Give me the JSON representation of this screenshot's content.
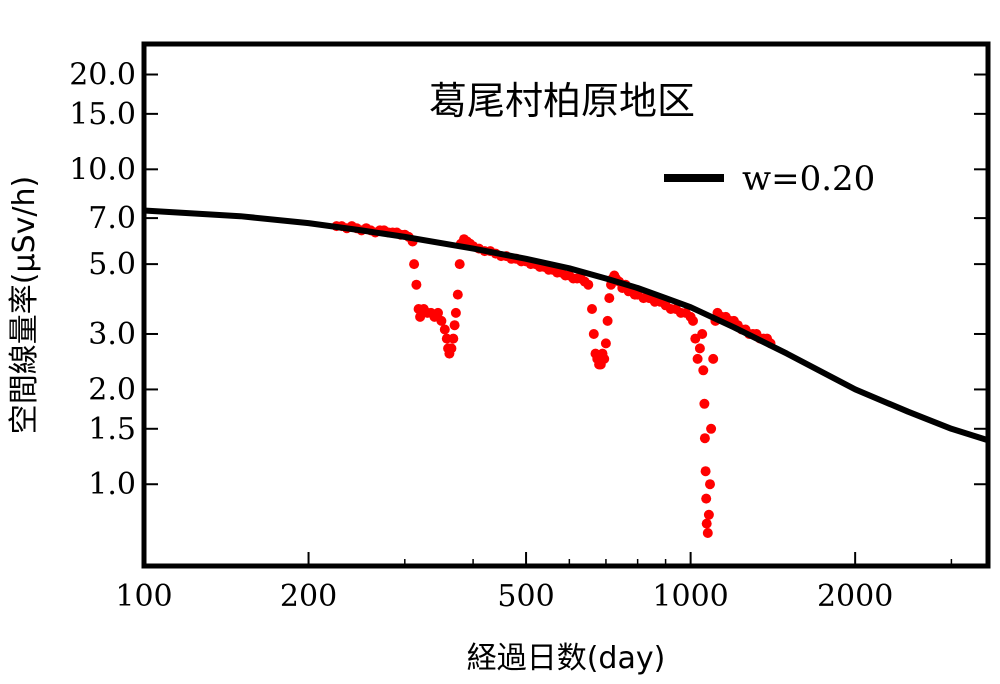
{
  "chart_data": {
    "type": "scatter",
    "title": "葛尾村柏原地区",
    "xlabel": "経過日数(day)",
    "ylabel": "空間線量率(μSv/h)",
    "x_scale": "log",
    "y_scale": "log",
    "xlim": [
      100,
      3500
    ],
    "ylim": [
      0.55,
      25
    ],
    "x_ticks": [
      100,
      200,
      500,
      1000,
      2000
    ],
    "x_tick_labels": [
      "100",
      "200",
      "500",
      "1000",
      "2000"
    ],
    "y_ticks": [
      1.0,
      1.5,
      2.0,
      3.0,
      5.0,
      7.0,
      10.0,
      15.0,
      20.0
    ],
    "y_tick_labels": [
      "1.0",
      "1.5",
      "2.0",
      "3.0",
      "5.0",
      "7.0",
      "10.0",
      "15.0",
      "20.0"
    ],
    "grid": false,
    "legend_position": "top-right",
    "colors": {
      "measured": "#ff0000",
      "fit": "#000000"
    },
    "series": [
      {
        "kind": "line",
        "name": "w=0.20",
        "color": "#000000",
        "x": [
          100,
          150,
          200,
          250,
          300,
          400,
          500,
          600,
          700,
          800,
          900,
          1000,
          1200,
          1500,
          2000,
          2500,
          3000,
          3500
        ],
        "y": [
          7.4,
          7.1,
          6.75,
          6.4,
          6.1,
          5.6,
          5.2,
          4.85,
          4.5,
          4.2,
          3.9,
          3.65,
          3.15,
          2.6,
          2.0,
          1.7,
          1.5,
          1.38
        ]
      },
      {
        "kind": "scatter",
        "color": "#ff0000",
        "x": [
          225,
          230,
          235,
          240,
          245,
          250,
          255,
          260,
          265,
          270,
          275,
          280,
          285,
          290,
          295,
          300,
          305,
          310,
          312,
          315,
          318,
          320,
          325,
          330,
          335,
          340,
          345,
          350,
          355,
          358,
          360,
          362,
          365,
          368,
          370,
          372,
          375,
          378,
          380,
          385,
          390,
          395,
          400,
          410,
          420,
          430,
          440,
          450,
          460,
          470,
          480,
          490,
          500,
          510,
          520,
          530,
          540,
          550,
          560,
          570,
          580,
          590,
          600,
          610,
          620,
          630,
          640,
          650,
          660,
          665,
          670,
          675,
          680,
          685,
          690,
          695,
          700,
          705,
          710,
          715,
          720,
          725,
          730,
          740,
          750,
          760,
          770,
          780,
          790,
          800,
          820,
          840,
          860,
          880,
          900,
          920,
          940,
          960,
          980,
          1000,
          1010,
          1020,
          1030,
          1040,
          1050,
          1055,
          1060,
          1062,
          1065,
          1068,
          1070,
          1075,
          1080,
          1085,
          1090,
          1100,
          1110,
          1120,
          1140,
          1160,
          1180,
          1200,
          1220,
          1240,
          1260,
          1280,
          1300,
          1320,
          1340,
          1360,
          1380,
          1400
        ],
        "y": [
          6.6,
          6.6,
          6.5,
          6.6,
          6.5,
          6.4,
          6.5,
          6.4,
          6.3,
          6.4,
          6.4,
          6.3,
          6.3,
          6.3,
          6.2,
          6.2,
          6.1,
          5.9,
          5.0,
          4.3,
          3.6,
          3.4,
          3.6,
          3.5,
          3.5,
          3.4,
          3.5,
          3.3,
          3.1,
          2.9,
          2.7,
          2.6,
          2.7,
          2.9,
          3.2,
          3.5,
          4.0,
          5.0,
          5.8,
          6.0,
          5.9,
          5.8,
          5.7,
          5.6,
          5.5,
          5.5,
          5.4,
          5.3,
          5.3,
          5.2,
          5.2,
          5.1,
          5.1,
          5.0,
          5.0,
          4.9,
          4.9,
          4.8,
          4.8,
          4.7,
          4.7,
          4.6,
          4.6,
          4.5,
          4.5,
          4.5,
          4.4,
          4.3,
          3.6,
          3.0,
          2.6,
          2.5,
          2.4,
          2.4,
          2.6,
          2.5,
          2.8,
          3.3,
          3.9,
          4.3,
          4.5,
          4.6,
          4.5,
          4.4,
          4.2,
          4.3,
          4.1,
          4.1,
          4.0,
          4.0,
          3.9,
          3.9,
          3.8,
          3.8,
          3.7,
          3.6,
          3.6,
          3.5,
          3.5,
          3.4,
          3.3,
          2.9,
          2.5,
          2.7,
          3.0,
          2.3,
          1.8,
          1.4,
          1.1,
          0.9,
          0.75,
          0.7,
          0.8,
          1.0,
          1.5,
          2.5,
          3.3,
          3.5,
          3.4,
          3.4,
          3.3,
          3.3,
          3.2,
          3.1,
          3.1,
          3.0,
          3.0,
          3.0,
          2.9,
          2.9,
          2.9,
          2.8
        ]
      }
    ]
  }
}
